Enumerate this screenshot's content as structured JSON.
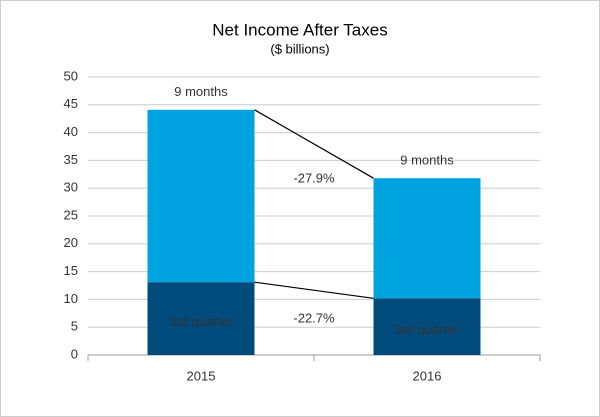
{
  "chart_data": {
    "type": "stacked-bar",
    "title": "Net Income After Taxes",
    "subtitle": "($ billions)",
    "categories": [
      "2015",
      "2016"
    ],
    "series": [
      {
        "name": "3rd quarter",
        "color": "#004b7c",
        "values": [
          13.1,
          10.2
        ]
      },
      {
        "name": "9 months",
        "color": "#00a3e0",
        "values": [
          31.0,
          21.6
        ]
      }
    ],
    "annotations": [
      "-27.9%",
      "-22.7%"
    ],
    "ylim": [
      0,
      50
    ],
    "yticks": [
      0,
      5,
      10,
      15,
      20,
      25,
      30,
      35,
      40,
      45,
      50
    ],
    "grid": true
  }
}
